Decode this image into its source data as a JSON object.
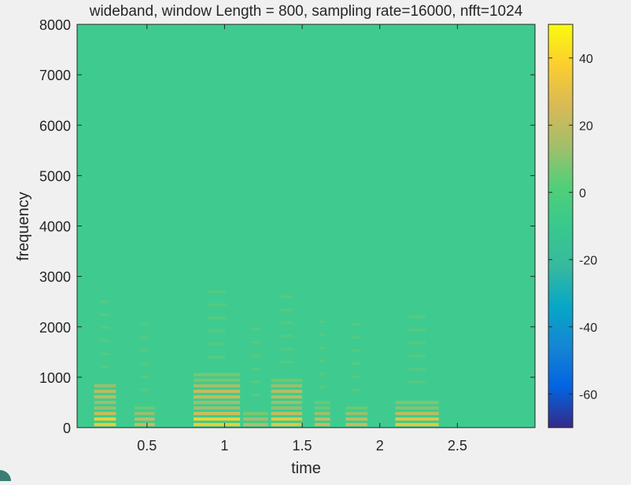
{
  "chart_data": {
    "type": "heatmap",
    "title": "wideband, window Length = 800, sampling rate=16000, nfft=1024",
    "xlabel": "time",
    "ylabel": "frequency",
    "xlim": [
      0.05,
      3.0
    ],
    "ylim": [
      0,
      8000
    ],
    "xticks": [
      0.5,
      1,
      1.5,
      2,
      2.5
    ],
    "xtick_labels": [
      "0.5",
      "1",
      "1.5",
      "2",
      "2.5"
    ],
    "yticks": [
      0,
      1000,
      2000,
      3000,
      4000,
      5000,
      6000,
      7000,
      8000
    ],
    "ytick_labels": [
      "0",
      "1000",
      "2000",
      "3000",
      "4000",
      "5000",
      "6000",
      "7000",
      "8000"
    ],
    "background_value": 0,
    "colorbar": {
      "colormap": "parula",
      "clim": [
        -70,
        50
      ],
      "ticks": [
        40,
        20,
        0,
        -20,
        -40,
        -60
      ],
      "tick_labels": [
        "40",
        "20",
        "0",
        "-20",
        "-40",
        "-60"
      ]
    },
    "energy_segments": [
      {
        "t_start": 0.16,
        "t_end": 0.3,
        "f_max": 900,
        "peak": 45
      },
      {
        "t_start": 0.42,
        "t_end": 0.55,
        "f_max": 450,
        "peak": 30
      },
      {
        "t_start": 0.8,
        "t_end": 1.1,
        "f_max": 1100,
        "peak": 45
      },
      {
        "t_start": 1.12,
        "t_end": 1.28,
        "f_max": 350,
        "peak": 25
      },
      {
        "t_start": 1.3,
        "t_end": 1.5,
        "f_max": 1000,
        "peak": 40
      },
      {
        "t_start": 1.58,
        "t_end": 1.68,
        "f_max": 500,
        "peak": 30
      },
      {
        "t_start": 1.78,
        "t_end": 1.92,
        "f_max": 450,
        "peak": 30
      },
      {
        "t_start": 2.1,
        "t_end": 2.38,
        "f_max": 600,
        "peak": 42
      }
    ]
  },
  "colors": {
    "figure_background": "#f0f0f0",
    "axes_background": "#3fcb8f"
  }
}
